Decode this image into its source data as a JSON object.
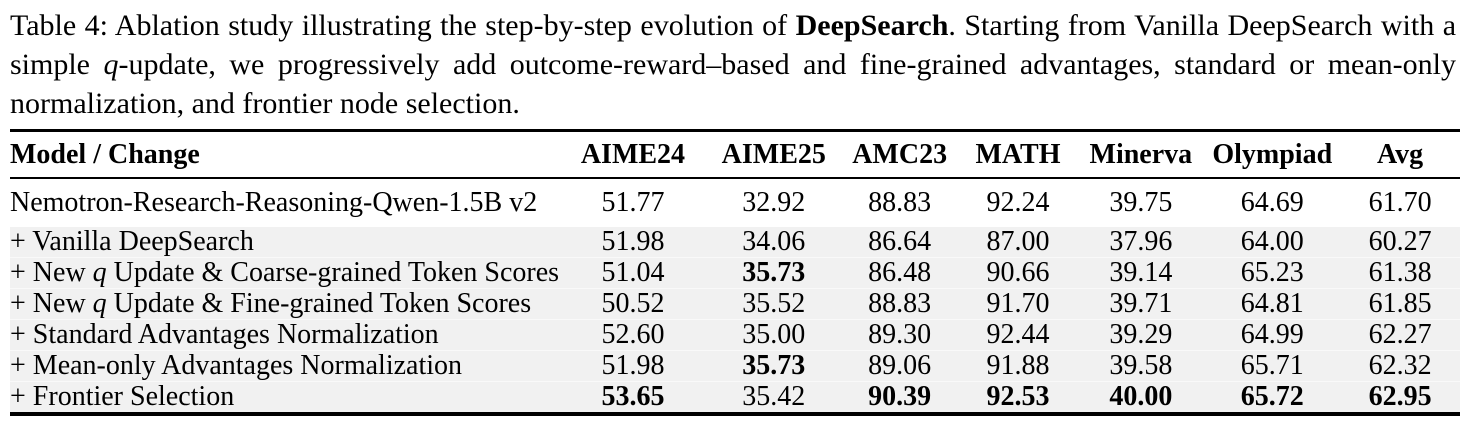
{
  "colors": {
    "background": "#ffffff",
    "text": "#000000",
    "rule": "#000000",
    "row_shade": "#f1f1f1"
  },
  "caption": {
    "parts": [
      "Table 4: Ablation study illustrating the step-by-step evolution of ",
      "DeepSearch",
      ". Starting from Vanilla DeepSearch with a simple ",
      "q",
      "-update, we progressively add outcome-reward–based and fine-grained advantages, standard or mean-only normalization, and frontier node selection."
    ]
  },
  "chart_data": {
    "type": "table",
    "title": "Ablation study of DeepSearch",
    "columns": [
      "Model / Change",
      "AIME24",
      "AIME25",
      "AMC23",
      "MATH",
      "Minerva",
      "Olympiad",
      "Avg"
    ],
    "rows": [
      {
        "label": {
          "pre": "Nemotron-Research-Reasoning-Qwen-1.5B v2",
          "it": "",
          "post": ""
        },
        "values": [
          "51.77",
          "32.92",
          "88.83",
          "92.24",
          "39.75",
          "64.69",
          "61.70"
        ],
        "bold": []
      },
      {
        "label": {
          "pre": "+ Vanilla DeepSearch",
          "it": "",
          "post": ""
        },
        "values": [
          "51.98",
          "34.06",
          "86.64",
          "87.00",
          "37.96",
          "64.00",
          "60.27"
        ],
        "bold": []
      },
      {
        "label": {
          "pre": "+ New ",
          "it": "q",
          "post": " Update & Coarse-grained Token Scores"
        },
        "values": [
          "51.04",
          "35.73",
          "86.48",
          "90.66",
          "39.14",
          "65.23",
          "61.38"
        ],
        "bold": [
          1
        ]
      },
      {
        "label": {
          "pre": "+ New ",
          "it": "q",
          "post": " Update & Fine-grained Token Scores"
        },
        "values": [
          "50.52",
          "35.52",
          "88.83",
          "91.70",
          "39.71",
          "64.81",
          "61.85"
        ],
        "bold": []
      },
      {
        "label": {
          "pre": "+ Standard Advantages Normalization",
          "it": "",
          "post": ""
        },
        "values": [
          "52.60",
          "35.00",
          "89.30",
          "92.44",
          "39.29",
          "64.99",
          "62.27"
        ],
        "bold": []
      },
      {
        "label": {
          "pre": "+ Mean-only Advantages Normalization",
          "it": "",
          "post": ""
        },
        "values": [
          "51.98",
          "35.73",
          "89.06",
          "91.88",
          "39.58",
          "65.71",
          "62.32"
        ],
        "bold": [
          1
        ]
      },
      {
        "label": {
          "pre": "+ Frontier Selection",
          "it": "",
          "post": ""
        },
        "values": [
          "53.65",
          "35.42",
          "90.39",
          "92.53",
          "40.00",
          "65.72",
          "62.95"
        ],
        "bold": [
          0,
          2,
          3,
          4,
          5,
          6
        ]
      }
    ]
  }
}
